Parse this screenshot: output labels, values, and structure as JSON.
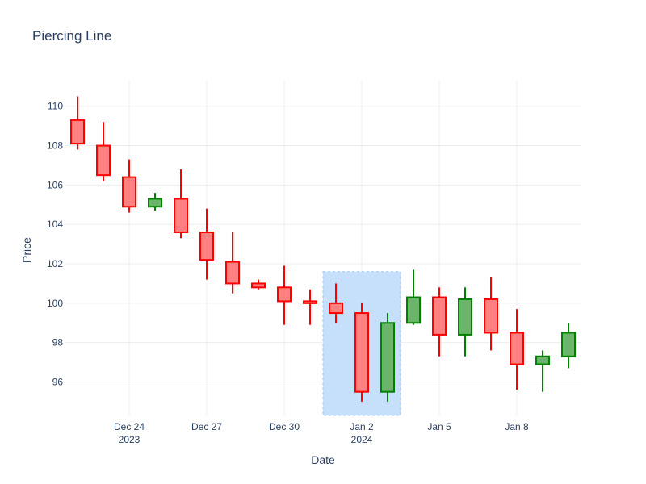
{
  "chart_data": {
    "type": "candlestick",
    "title": "Piercing Line",
    "xlabel": "Date",
    "ylabel": "Price",
    "ylim": [
      94.3,
      111.3
    ],
    "grid": true,
    "x_ticks": [
      {
        "date": "2023-12-24",
        "label": "Dec 24",
        "sublabel": "2023"
      },
      {
        "date": "2023-12-27",
        "label": "Dec 27",
        "sublabel": ""
      },
      {
        "date": "2023-12-30",
        "label": "Dec 30",
        "sublabel": ""
      },
      {
        "date": "2024-01-02",
        "label": "Jan 2",
        "sublabel": "2024"
      },
      {
        "date": "2024-01-05",
        "label": "Jan 5",
        "sublabel": ""
      },
      {
        "date": "2024-01-08",
        "label": "Jan 8",
        "sublabel": ""
      }
    ],
    "y_ticks": [
      96,
      98,
      100,
      102,
      104,
      106,
      108,
      110
    ],
    "x_range": [
      "2023-12-21 12:00",
      "2024-01-10 12:00"
    ],
    "colors": {
      "increasing_line": "#008000",
      "increasing_fill": "#6ab56a",
      "decreasing_line": "#ff0000",
      "decreasing_fill": "#ff8080",
      "highlight_fill": "#c6e0fb",
      "highlight_line": "#9ec5f3"
    },
    "highlight": {
      "x0": "2023-12-31 12:00",
      "x1": "2024-01-03 12:00",
      "y0": 94.3,
      "y1": 101.6
    },
    "candles": [
      {
        "date": "2023-12-22",
        "open": 109.3,
        "high": 110.5,
        "low": 107.8,
        "close": 108.1
      },
      {
        "date": "2023-12-23",
        "open": 108.0,
        "high": 109.2,
        "low": 106.2,
        "close": 106.5
      },
      {
        "date": "2023-12-24",
        "open": 106.4,
        "high": 107.3,
        "low": 104.6,
        "close": 104.9
      },
      {
        "date": "2023-12-25",
        "open": 104.9,
        "high": 105.6,
        "low": 104.7,
        "close": 105.3
      },
      {
        "date": "2023-12-26",
        "open": 105.3,
        "high": 106.8,
        "low": 103.3,
        "close": 103.6
      },
      {
        "date": "2023-12-27",
        "open": 103.6,
        "high": 104.8,
        "low": 101.2,
        "close": 102.2
      },
      {
        "date": "2023-12-28",
        "open": 102.1,
        "high": 103.6,
        "low": 100.5,
        "close": 101.0
      },
      {
        "date": "2023-12-29",
        "open": 101.0,
        "high": 101.2,
        "low": 100.7,
        "close": 100.8
      },
      {
        "date": "2023-12-30",
        "open": 100.8,
        "high": 101.9,
        "low": 98.9,
        "close": 100.1
      },
      {
        "date": "2023-12-31",
        "open": 100.1,
        "high": 100.7,
        "low": 98.9,
        "close": 100.0
      },
      {
        "date": "2024-01-01",
        "open": 100.0,
        "high": 101.0,
        "low": 99.0,
        "close": 99.5
      },
      {
        "date": "2024-01-02",
        "open": 99.5,
        "high": 100.0,
        "low": 95.0,
        "close": 95.5
      },
      {
        "date": "2024-01-03",
        "open": 95.5,
        "high": 99.5,
        "low": 95.0,
        "close": 99.0
      },
      {
        "date": "2024-01-04",
        "open": 99.0,
        "high": 101.7,
        "low": 98.9,
        "close": 100.3
      },
      {
        "date": "2024-01-05",
        "open": 100.3,
        "high": 100.8,
        "low": 97.3,
        "close": 98.4
      },
      {
        "date": "2024-01-06",
        "open": 98.4,
        "high": 100.8,
        "low": 97.3,
        "close": 100.2
      },
      {
        "date": "2024-01-07",
        "open": 100.2,
        "high": 101.3,
        "low": 97.6,
        "close": 98.5
      },
      {
        "date": "2024-01-08",
        "open": 98.5,
        "high": 99.7,
        "low": 95.6,
        "close": 96.9
      },
      {
        "date": "2024-01-09",
        "open": 96.9,
        "high": 97.6,
        "low": 95.5,
        "close": 97.3
      },
      {
        "date": "2024-01-10",
        "open": 97.3,
        "high": 99.0,
        "low": 96.7,
        "close": 98.5
      }
    ]
  }
}
